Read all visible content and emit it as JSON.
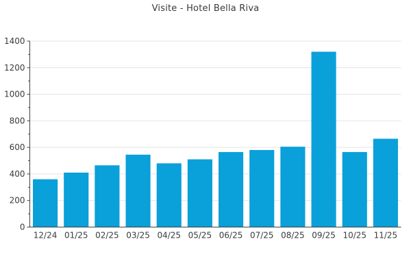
{
  "title": "Visite - Hotel Bella Riva",
  "colors": {
    "bar": "#0AA0DA",
    "grid": "#E4E4E4",
    "axis": "#424242",
    "text": "#3A3A3A",
    "background": "#FFFFFF"
  },
  "chart_data": {
    "type": "bar",
    "title": "Visite - Hotel Bella Riva",
    "categories": [
      "12/24",
      "01/25",
      "02/25",
      "03/25",
      "04/25",
      "05/25",
      "06/25",
      "07/25",
      "08/25",
      "09/25",
      "10/25",
      "11/25"
    ],
    "values": [
      360,
      410,
      465,
      545,
      480,
      510,
      565,
      580,
      605,
      1320,
      565,
      665
    ],
    "xlabel": "",
    "ylabel": "",
    "ylim": [
      0,
      1400
    ],
    "y_tick_step": 200,
    "y_minor_tick_step": 100,
    "y_tick_labels": [
      "0",
      "200",
      "400",
      "600",
      "800",
      "1000",
      "1200",
      "1400"
    ],
    "grid": "horizontal-major",
    "legend": "none",
    "bar_relative_width": 0.8
  }
}
